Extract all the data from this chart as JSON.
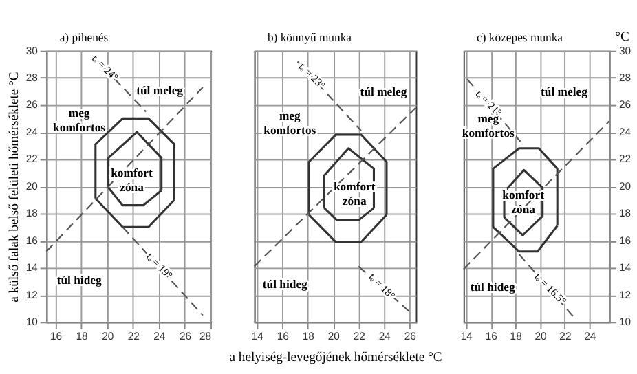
{
  "chart_data": [
    {
      "type": "line",
      "title": "a) pihenés",
      "ylabel": "a külső falak belső felületi hőmérséklete °C",
      "xlim": [
        15.3,
        28
      ],
      "ylim": [
        10,
        30
      ],
      "xticks": [
        16,
        18,
        20,
        22,
        24,
        26,
        28
      ],
      "yticks": [
        10,
        12,
        14,
        16,
        18,
        20,
        22,
        24,
        26,
        28,
        30
      ],
      "grid": true,
      "series": [
        {
          "color": "#333333",
          "x": [
            19.1,
            19.1,
            21.2,
            23.2,
            25.2,
            25.2
          ],
          "values": [
            19.1,
            23.1,
            25,
            25,
            23.1,
            19
          ]
        },
        {
          "color": "#333333",
          "x": [
            19.1,
            21.2,
            23.2,
            25.2
          ],
          "values": [
            19.1,
            17,
            17,
            19
          ]
        },
        {
          "color": "#333333",
          "x": [
            20.1,
            20.1,
            22.3,
            24.2,
            24.2
          ],
          "values": [
            19.9,
            22.1,
            24,
            22.1,
            19.7
          ]
        },
        {
          "color": "#333333",
          "x": [
            20.1,
            21.2,
            22.8,
            24.2
          ],
          "values": [
            19.9,
            18.6,
            18.6,
            19.7
          ]
        },
        {
          "color": "#555555",
          "line_style": "dashed",
          "x": [
            15.3,
            27.4
          ],
          "values": [
            15.2,
            27.3
          ]
        },
        {
          "color": "#555555",
          "line_style": "dashed",
          "x": [
            19,
            23
          ],
          "values": [
            29.5,
            25.5
          ]
        },
        {
          "color": "#555555",
          "line_style": "dashed",
          "x": [
            21.2,
            27.4
          ],
          "values": [
            17,
            10.5
          ]
        }
      ],
      "annotations": [
        "túl meleg",
        "meg\nkomfortos",
        "komfort\nzóna",
        "túl hideg",
        {
          "text": "tₑ = 24°",
          "x": 19.8,
          "y": 28.7
        },
        {
          "text": "tₑ = 19°",
          "x": 24,
          "y": 14.1
        }
      ]
    },
    {
      "type": "line",
      "title": "b) könnyű munka",
      "xlabel": "a helyiség-levegőjének hőmérséklete °C",
      "xlim": [
        13.8,
        26.5
      ],
      "ylim": [
        10,
        30
      ],
      "xticks": [
        14,
        16,
        18,
        20,
        22,
        24,
        26
      ],
      "yticks": [
        10,
        12,
        14,
        16,
        18,
        20,
        22,
        24,
        26,
        28,
        30
      ],
      "grid": true,
      "tick_labels": "x",
      "series": [
        {
          "color": "#333333",
          "x": [
            18.1,
            18.1,
            20.2,
            22.2,
            24.2,
            24.2
          ],
          "values": [
            17.9,
            21.8,
            23.8,
            23.8,
            21.8,
            17.9
          ]
        },
        {
          "color": "#333333",
          "x": [
            18.1,
            20.2,
            22.2,
            24.2
          ],
          "values": [
            17.9,
            15.9,
            15.9,
            17.9
          ]
        },
        {
          "color": "#333333",
          "x": [
            19.3,
            19.3,
            21.2,
            23.2,
            23.2
          ],
          "values": [
            18.4,
            20.8,
            22.8,
            21.3,
            18.4
          ]
        },
        {
          "color": "#333333",
          "x": [
            19.3,
            20.3,
            22,
            23.2
          ],
          "values": [
            18.4,
            17.5,
            17.5,
            18.4
          ]
        },
        {
          "color": "#555555",
          "line_style": "dashed",
          "x": [
            13.8,
            26.5
          ],
          "values": [
            14.1,
            25.8
          ]
        },
        {
          "color": "#555555",
          "line_style": "dashed",
          "x": [
            17.2,
            22.2
          ],
          "values": [
            29.2,
            24.1
          ]
        },
        {
          "color": "#555555",
          "line_style": "dashed",
          "x": [
            22,
            26.2
          ],
          "values": [
            14.1,
            10.6
          ]
        }
      ],
      "annotations": [
        "túl meleg",
        "meg\nkomfortos",
        "komfort\nzóna",
        "túl hideg",
        {
          "text": "tₑ = 23°",
          "x": 18.3,
          "y": 28.1
        },
        {
          "text": "tₑ = 18°",
          "x": 23.8,
          "y": 12.6
        }
      ]
    },
    {
      "type": "line",
      "title": "c) közepes munka",
      "ylabel": "°C",
      "xlim": [
        13.8,
        25.6
      ],
      "ylim": [
        10,
        30
      ],
      "xticks": [
        14,
        16,
        18,
        20,
        22,
        24
      ],
      "yticks": [
        10,
        12,
        14,
        16,
        18,
        20,
        22,
        24,
        26,
        28,
        30
      ],
      "grid": true,
      "series": [
        {
          "color": "#333333",
          "x": [
            16.2,
            16.2,
            18.3,
            19.9,
            21.4,
            21.4
          ],
          "values": [
            17,
            21.3,
            22.8,
            22.8,
            21.3,
            17.1
          ]
        },
        {
          "color": "#333333",
          "x": [
            16.2,
            18.3,
            19.8,
            21.4
          ],
          "values": [
            17,
            15.2,
            15.2,
            17.1
          ]
        },
        {
          "color": "#333333",
          "x": [
            17.1,
            17.1,
            18.7,
            20.2,
            20.2
          ],
          "values": [
            17.7,
            19.6,
            21.2,
            19.9,
            17.8
          ]
        },
        {
          "color": "#333333",
          "x": [
            17.1,
            18.6,
            20.2
          ],
          "values": [
            17.7,
            16.4,
            17.8
          ]
        },
        {
          "color": "#555555",
          "line_style": "dashed",
          "x": [
            13.8,
            25.6
          ],
          "values": [
            13.9,
            24.8
          ]
        },
        {
          "color": "#555555",
          "line_style": "dashed",
          "x": [
            14.1,
            18.6
          ],
          "values": [
            27.9,
            23.1
          ]
        },
        {
          "color": "#555555",
          "line_style": "dashed",
          "x": [
            18.3,
            22.7
          ],
          "values": [
            15,
            10.4
          ]
        }
      ],
      "annotations": [
        "túl meleg",
        "meg\nkomfortos",
        "komfort\nzóna",
        "túl hideg",
        {
          "text": "tₑ = 21°",
          "x": 15.8,
          "y": 26.1
        },
        {
          "text": "tₑ = 16,5°",
          "x": 20.8,
          "y": 12.4
        }
      ]
    }
  ]
}
